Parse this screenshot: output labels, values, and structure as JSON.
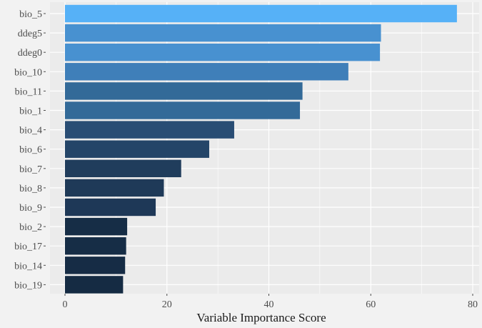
{
  "chart_data": {
    "type": "bar",
    "orientation": "horizontal",
    "categories": [
      "bio_5",
      "ddeg5",
      "ddeg0",
      "bio_10",
      "bio_11",
      "bio_1",
      "bio_4",
      "bio_6",
      "bio_7",
      "bio_8",
      "bio_9",
      "bio_2",
      "bio_17",
      "bio_14",
      "bio_19"
    ],
    "values": [
      76.9,
      62.0,
      61.8,
      55.6,
      46.6,
      46.1,
      33.2,
      28.3,
      22.8,
      19.4,
      17.8,
      12.2,
      12.0,
      11.8,
      11.4
    ],
    "colors": [
      "#56b1f7",
      "#4891d0",
      "#4891d0",
      "#3f7fb9",
      "#336a98",
      "#336a98",
      "#294d74",
      "#244568",
      "#203d5c",
      "#1f3a58",
      "#1e3857",
      "#162d46",
      "#162d46",
      "#162c45",
      "#152b43"
    ],
    "title": "",
    "xlabel": "Variable Importance Score",
    "ylabel": "",
    "xlim": [
      0,
      80
    ],
    "xticks": [
      0,
      20,
      40,
      60,
      80
    ],
    "grid": true,
    "legend": "none",
    "panel_color": "#ebebeb",
    "grid_color": "#ffffff"
  }
}
